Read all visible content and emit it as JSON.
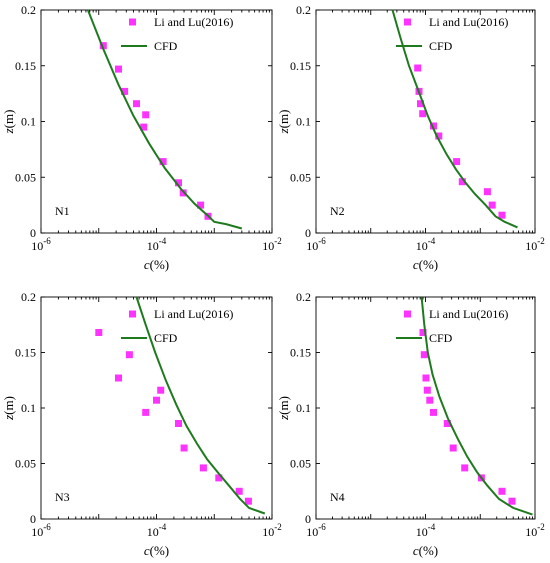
{
  "colors": {
    "measured": "#ff33ff",
    "cfd": "#1f7a1f",
    "axis": "#000000"
  },
  "chart_data": [
    {
      "type": "scatter",
      "panel_tag": "N1",
      "xlabel_var": "c",
      "xlabel_unit": "(%)",
      "ylabel_var": "z",
      "ylabel_unit": "(m)",
      "x_scale": "log",
      "xlim": [
        1e-06,
        0.01
      ],
      "ylim": [
        0,
        0.2
      ],
      "x_tick_labels": [
        {
          "base": "10",
          "exp": "-6",
          "v": 1e-06
        },
        {
          "base": "10",
          "exp": "-4",
          "v": 0.0001
        },
        {
          "base": "10",
          "exp": "-2",
          "v": 0.01
        }
      ],
      "y_ticks": [
        0,
        0.05,
        0.1,
        0.15,
        0.2
      ],
      "y_tick_labels": [
        "0",
        "0.05",
        "0.1",
        "0.15",
        "0.2"
      ],
      "legend_position": "top-right",
      "series": [
        {
          "name": "Li and Lu(2016)",
          "kind": "markers",
          "x": [
            1.2e-05,
            2.2e-05,
            2.8e-05,
            4.5e-05,
            6.5e-05,
            6e-05,
            0.00013,
            0.00024,
            0.00029,
            0.00058,
            0.00078
          ],
          "y": [
            0.168,
            0.147,
            0.127,
            0.116,
            0.106,
            0.095,
            0.064,
            0.045,
            0.036,
            0.025,
            0.015
          ]
        },
        {
          "name": "CFD",
          "kind": "line",
          "x": [
            6.5e-06,
            1.2e-05,
            2.2e-05,
            4e-05,
            7.5e-05,
            0.00014,
            0.00026,
            0.00046,
            0.00076,
            0.001,
            0.0016,
            0.003
          ],
          "y": [
            0.2,
            0.165,
            0.133,
            0.105,
            0.08,
            0.058,
            0.04,
            0.026,
            0.016,
            0.01,
            0.008,
            0.004
          ]
        }
      ]
    },
    {
      "type": "scatter",
      "panel_tag": "N2",
      "xlabel_var": "c",
      "xlabel_unit": "(%)",
      "ylabel_var": "z",
      "ylabel_unit": "(m)",
      "x_scale": "log",
      "xlim": [
        1e-06,
        0.01
      ],
      "ylim": [
        0,
        0.2
      ],
      "x_tick_labels": [
        {
          "base": "10",
          "exp": "-6",
          "v": 1e-06
        },
        {
          "base": "10",
          "exp": "-4",
          "v": 0.0001
        },
        {
          "base": "10",
          "exp": "-2",
          "v": 0.01
        }
      ],
      "y_ticks": [
        0,
        0.05,
        0.1,
        0.15,
        0.2
      ],
      "y_tick_labels": [
        "0",
        "0.05",
        "0.1",
        "0.15",
        "0.2"
      ],
      "legend_position": "top-right",
      "series": [
        {
          "name": "Li and Lu(2016)",
          "kind": "markers",
          "x": [
            7.2e-05,
            7.6e-05,
            8.1e-05,
            8.9e-05,
            0.00014,
            0.000175,
            0.00037,
            0.00047,
            0.00135,
            0.00165,
            0.0025
          ],
          "y": [
            0.148,
            0.127,
            0.116,
            0.107,
            0.096,
            0.087,
            0.064,
            0.046,
            0.037,
            0.025,
            0.016
          ]
        },
        {
          "name": "CFD",
          "kind": "line",
          "x": [
            2.5e-05,
            3.5e-05,
            5e-05,
            7.5e-05,
            0.00011,
            0.00016,
            0.00024,
            0.00036,
            0.00054,
            0.0008,
            0.00125,
            0.0019,
            0.0028,
            0.0048
          ],
          "y": [
            0.2,
            0.175,
            0.15,
            0.127,
            0.105,
            0.087,
            0.071,
            0.057,
            0.045,
            0.035,
            0.025,
            0.015,
            0.01,
            0.005
          ]
        }
      ]
    },
    {
      "type": "scatter",
      "panel_tag": "N3",
      "xlabel_var": "c",
      "xlabel_unit": "(%)",
      "ylabel_var": "z",
      "ylabel_unit": "(m)",
      "x_scale": "log",
      "xlim": [
        1e-06,
        0.01
      ],
      "ylim": [
        0,
        0.2
      ],
      "x_tick_labels": [
        {
          "base": "10",
          "exp": "-6",
          "v": 1e-06
        },
        {
          "base": "10",
          "exp": "-4",
          "v": 0.0001
        },
        {
          "base": "10",
          "exp": "-2",
          "v": 0.01
        }
      ],
      "y_ticks": [
        0,
        0.05,
        0.1,
        0.15,
        0.2
      ],
      "y_tick_labels": [
        "0",
        "0.05",
        "0.1",
        "0.15",
        "0.2"
      ],
      "legend_position": "top-right",
      "series": [
        {
          "name": "Li and Lu(2016)",
          "kind": "markers",
          "x": [
            1e-05,
            3.4e-05,
            2.2e-05,
            0.000118,
            0.0001,
            6.5e-05,
            0.00024,
            0.0003,
            0.00065,
            0.0012,
            0.0027,
            0.0039
          ],
          "y": [
            0.168,
            0.148,
            0.127,
            0.116,
            0.107,
            0.096,
            0.086,
            0.064,
            0.046,
            0.037,
            0.025,
            0.016
          ]
        },
        {
          "name": "CFD",
          "kind": "line",
          "x": [
            4.5e-05,
            6.5e-05,
            9.5e-05,
            0.000145,
            0.00022,
            0.00033,
            0.0005,
            0.00075,
            0.00115,
            0.0018,
            0.0028,
            0.004,
            0.0075
          ],
          "y": [
            0.2,
            0.175,
            0.15,
            0.125,
            0.103,
            0.084,
            0.068,
            0.054,
            0.042,
            0.03,
            0.018,
            0.01,
            0.005
          ]
        }
      ]
    },
    {
      "type": "scatter",
      "panel_tag": "N4",
      "xlabel_var": "c",
      "xlabel_unit": "(%)",
      "ylabel_var": "z",
      "ylabel_unit": "(m)",
      "x_scale": "log",
      "xlim": [
        1e-06,
        0.01
      ],
      "ylim": [
        0,
        0.2
      ],
      "x_tick_labels": [
        {
          "base": "10",
          "exp": "-6",
          "v": 1e-06
        },
        {
          "base": "10",
          "exp": "-4",
          "v": 0.0001
        },
        {
          "base": "10",
          "exp": "-2",
          "v": 0.01
        }
      ],
      "y_ticks": [
        0,
        0.05,
        0.1,
        0.15,
        0.2
      ],
      "y_tick_labels": [
        "0",
        "0.05",
        "0.1",
        "0.15",
        "0.2"
      ],
      "legend_position": "top-right",
      "series": [
        {
          "name": "Li and Lu(2016)",
          "kind": "markers",
          "x": [
            9e-05,
            9.5e-05,
            0.000102,
            0.000108,
            0.00012,
            0.00014,
            0.00025,
            0.00032,
            0.00052,
            0.00105,
            0.0025,
            0.0038
          ],
          "y": [
            0.168,
            0.148,
            0.127,
            0.116,
            0.107,
            0.096,
            0.086,
            0.064,
            0.046,
            0.037,
            0.025,
            0.016
          ]
        },
        {
          "name": "CFD",
          "kind": "line",
          "x": [
            8.5e-05,
            9.5e-05,
            0.00011,
            0.000135,
            0.00018,
            0.00026,
            0.00039,
            0.00058,
            0.00088,
            0.00135,
            0.0022,
            0.004,
            0.009
          ],
          "y": [
            0.2,
            0.175,
            0.15,
            0.13,
            0.11,
            0.09,
            0.072,
            0.056,
            0.042,
            0.03,
            0.018,
            0.01,
            0.004
          ]
        }
      ]
    }
  ]
}
